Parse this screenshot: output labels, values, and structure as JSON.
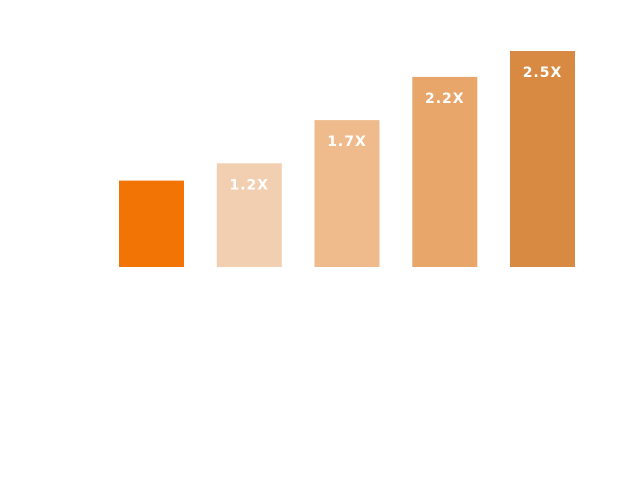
{
  "chart_data": {
    "type": "bar",
    "categories": [
      "",
      "",
      "",
      "",
      ""
    ],
    "values": [
      1.0,
      1.2,
      1.7,
      2.2,
      2.5
    ],
    "data_labels": [
      "",
      "1.2X",
      "1.7X",
      "2.2X",
      "2.5X"
    ],
    "title": "",
    "xlabel": "",
    "ylabel": "",
    "ylim": [
      0,
      2.5
    ],
    "grid": false,
    "legend": "none",
    "colors": [
      "#f27405",
      "#f2cfb0",
      "#efbb8d",
      "#e9a66b",
      "#d88a43"
    ]
  }
}
